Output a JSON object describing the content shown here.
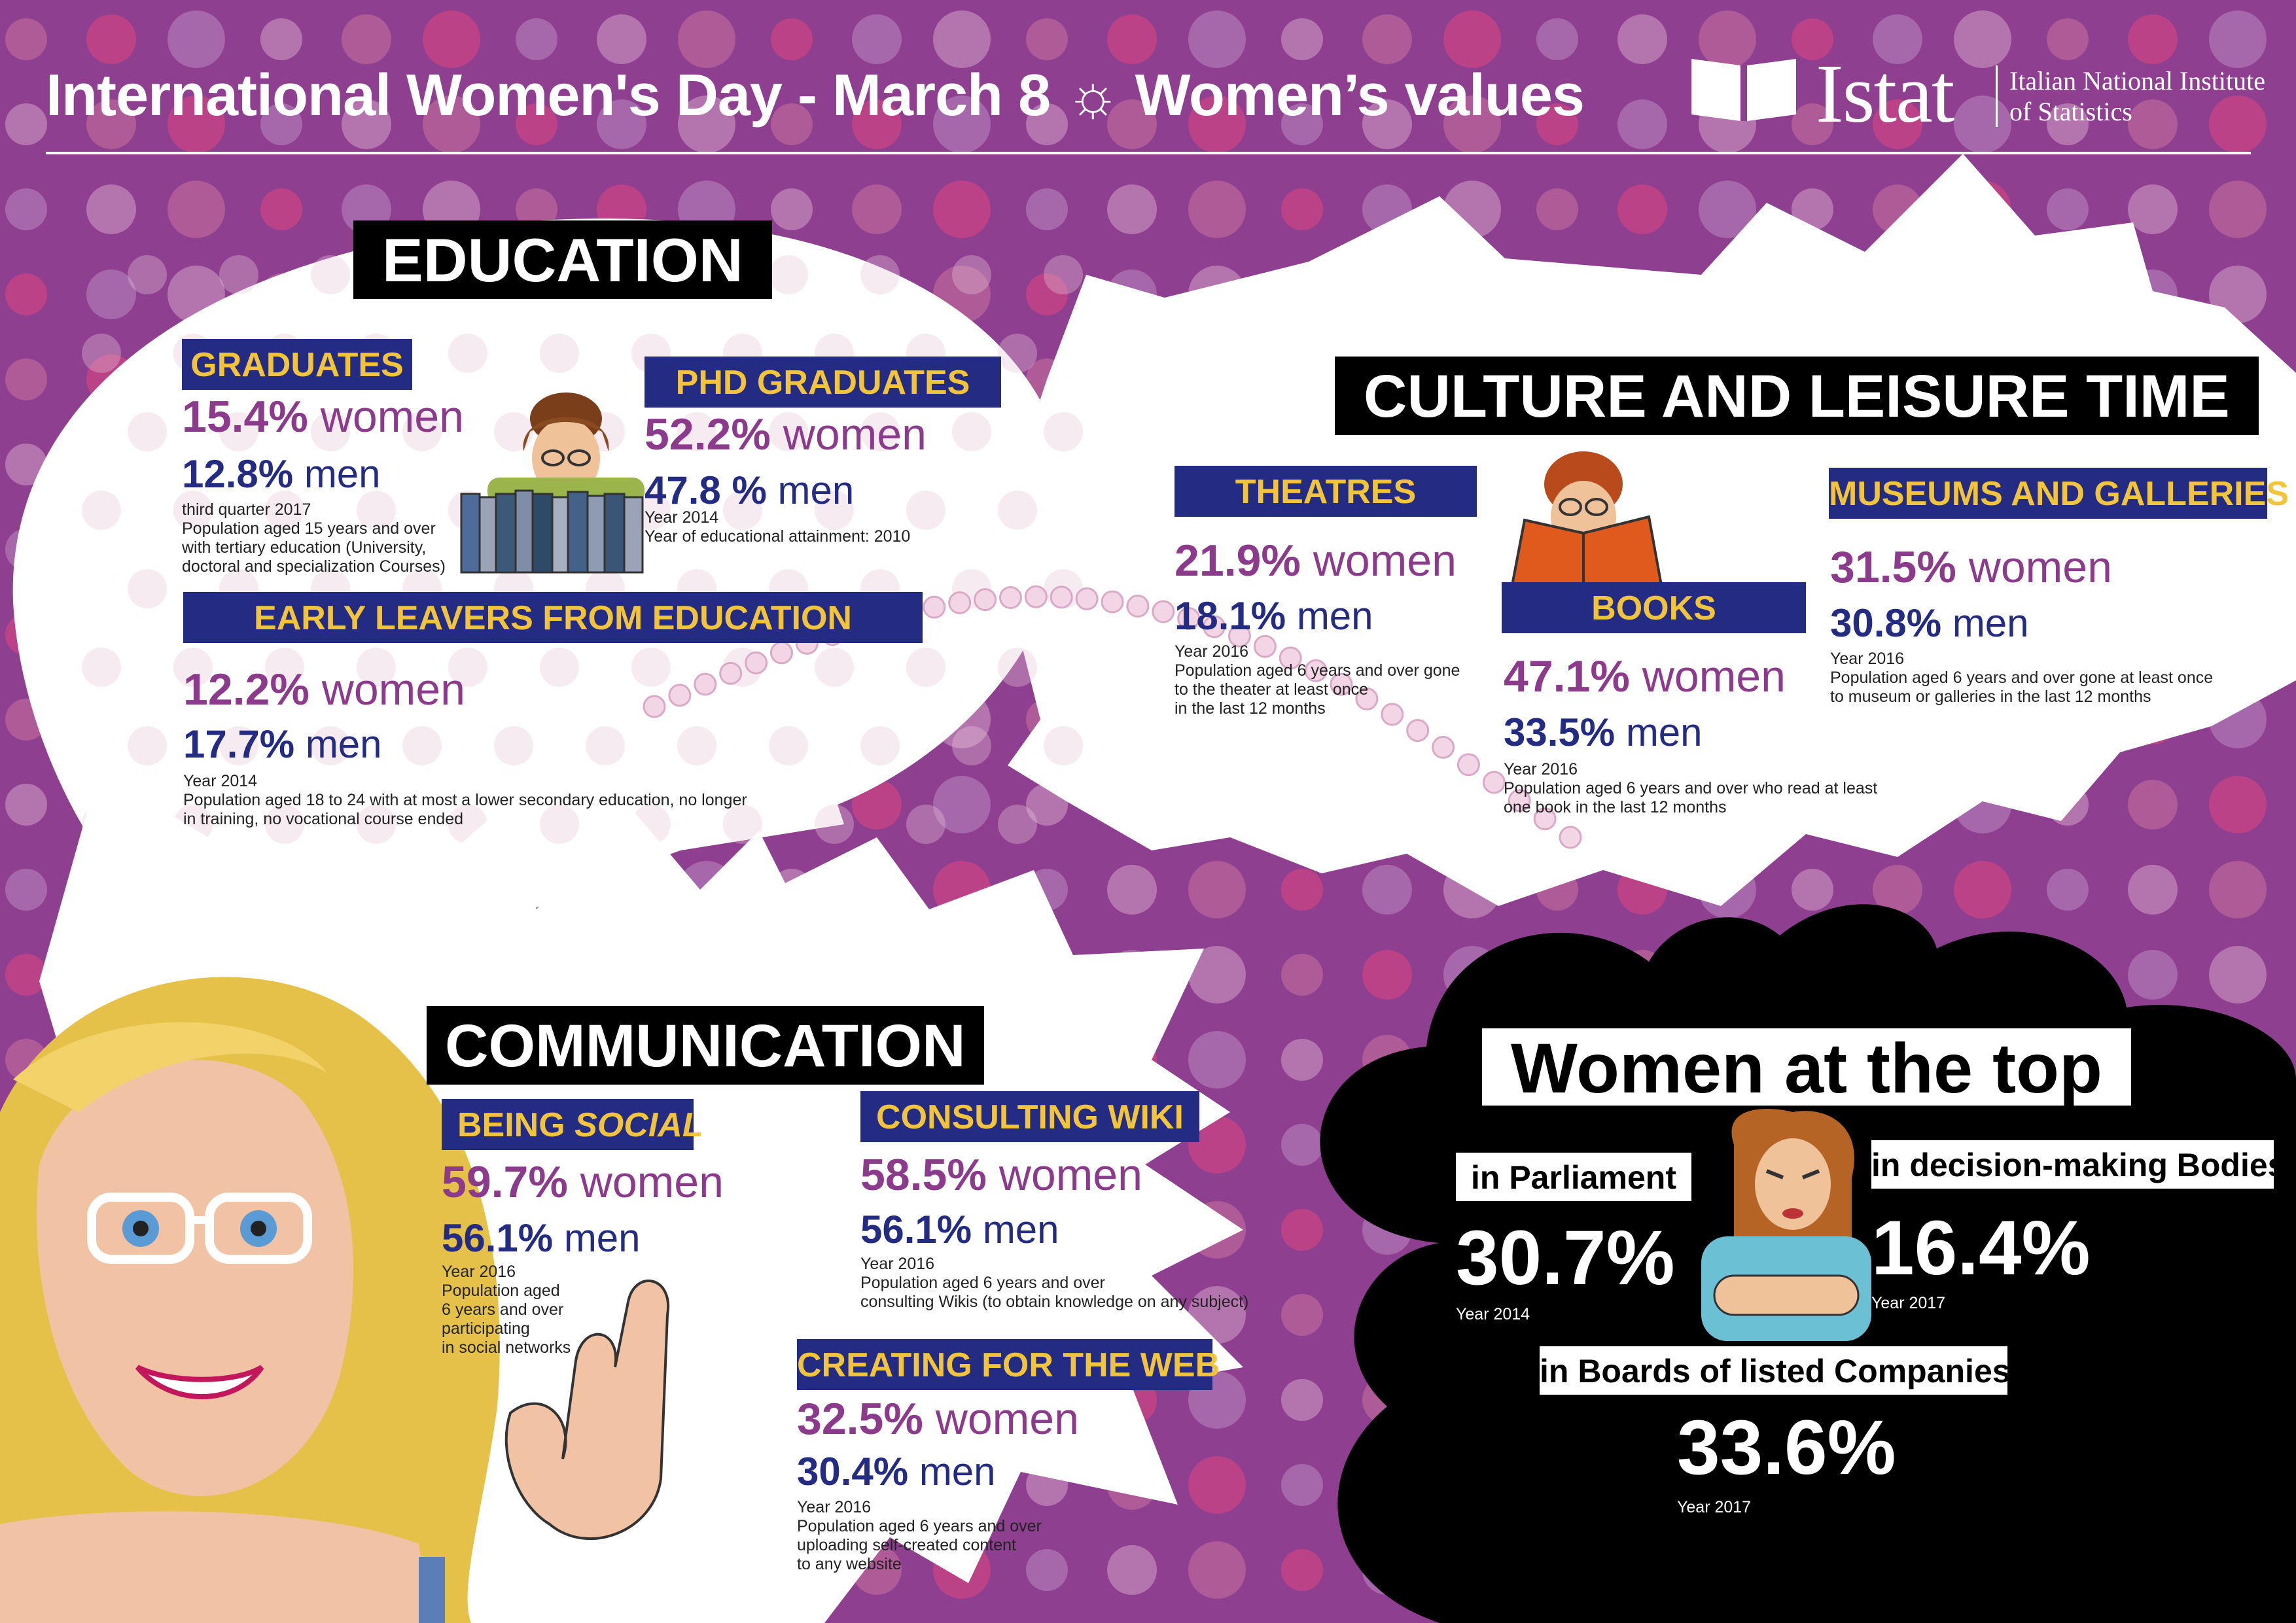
{
  "header": {
    "title": "International Women's Day - March 8",
    "separator": "☼",
    "title_rest": "Women’s values",
    "logo_word": "Istat",
    "logo_sub_line1": "Italian National Institute",
    "logo_sub_line2": "of Statistics"
  },
  "colors": {
    "background": "#8e3f8f",
    "label_bg": "#232b82",
    "label_text": "#f2c43c",
    "women": "#8c3a8b",
    "men": "#232b82"
  },
  "education": {
    "title": "EDUCATION",
    "graduates": {
      "label": "GRADUATES",
      "women_value": "15.4%",
      "women_word": "women",
      "men_value": "12.8%",
      "men_word": "men",
      "note_line1": "third quarter 2017",
      "note_line2": "Population aged 15 years and over",
      "note_line3": "with tertiary education (University,",
      "note_line4": "doctoral and specialization Courses)"
    },
    "phd": {
      "label": "PHD GRADUATES",
      "women_value": "52.2%",
      "women_word": "women",
      "men_value": "47.8 %",
      "men_word": "men",
      "note_line1": "Year 2014",
      "note_line2": "Year of educational attainment: 2010"
    },
    "early_leavers": {
      "label": "EARLY LEAVERS FROM EDUCATION",
      "women_value": "12.2%",
      "women_word": "women",
      "men_value": "17.7%",
      "men_word": "men",
      "note_line1": "Year 2014",
      "note_line2": "Population aged 18 to 24 with at most a lower secondary education, no longer",
      "note_line3": "in training, no vocational course ended"
    }
  },
  "culture": {
    "title": "CULTURE AND LEISURE TIME",
    "theatres": {
      "label": "THEATRES",
      "women_value": "21.9%",
      "women_word": "women",
      "men_value": "18.1%",
      "men_word": "men",
      "note_line1": "Year 2016",
      "note_line2": "Population aged 6 years and over gone",
      "note_line3": "to the theater at least once",
      "note_line4": "in the last 12 months"
    },
    "books": {
      "label": "BOOKS",
      "women_value": "47.1%",
      "women_word": "women",
      "men_value": "33.5%",
      "men_word": "men",
      "note_line1": "Year 2016",
      "note_line2": "Population aged 6 years and over who read at least",
      "note_line3": "one book in the last 12 months"
    },
    "museums": {
      "label": "MUSEUMS AND GALLERIES",
      "women_value": "31.5%",
      "women_word": "women",
      "men_value": "30.8%",
      "men_word": "men",
      "note_line1": "Year 2016",
      "note_line2": "Population aged 6 years and over gone at least once",
      "note_line3": "to museum or galleries in the last 12 months"
    }
  },
  "communication": {
    "title": "COMMUNICATION",
    "social": {
      "label_prefix": "BEING",
      "label_italic": "SOCIAL",
      "women_value": "59.7%",
      "women_word": "women",
      "men_value": "56.1%",
      "men_word": "men",
      "note_line1": "Year 2016",
      "note_line2": "Population aged",
      "note_line3": "6 years and over",
      "note_line4": "participating",
      "note_line5": "in social networks"
    },
    "wiki": {
      "label": "CONSULTING WIKI",
      "women_value": "58.5%",
      "women_word": "women",
      "men_value": "56.1%",
      "men_word": "men",
      "note_line1": "Year 2016",
      "note_line2": "Population aged 6 years and over",
      "note_line3": "consulting Wikis (to obtain knowledge on any subject)"
    },
    "web": {
      "label": "CREATING FOR THE WEB",
      "women_value": "32.5%",
      "women_word": "women",
      "men_value": "30.4%",
      "men_word": "men",
      "note_line1": "Year 2016",
      "note_line2": "Population aged 6 years and over",
      "note_line3": "uploading self-created content",
      "note_line4": "to any website"
    }
  },
  "top": {
    "title": "Women at the top",
    "parliament": {
      "label": "in Parliament",
      "value": "30.7%",
      "year": "Year 2014"
    },
    "bodies": {
      "label": "in decision-making Bodies",
      "value": "16.4%",
      "year": "Year 2017"
    },
    "boards": {
      "label": "in Boards of listed Companies",
      "value": "33.6%",
      "year": "Year 2017"
    }
  }
}
